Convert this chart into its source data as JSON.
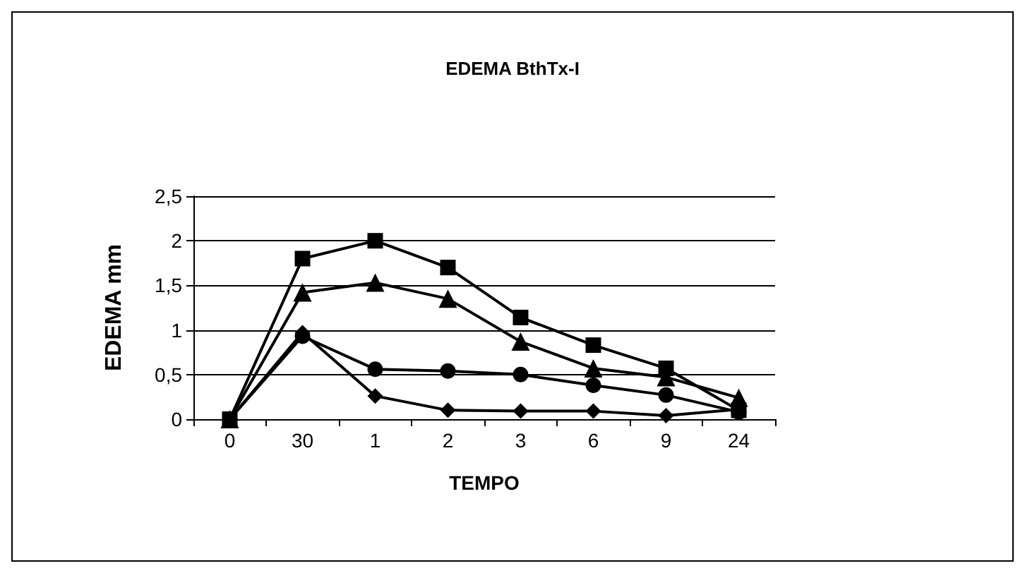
{
  "chart_data": {
    "type": "line",
    "title": "EDEMA BthTx-I",
    "xlabel": "TEMPO",
    "ylabel": "EDEMA mm",
    "categories": [
      "0",
      "30",
      "1",
      "2",
      "3",
      "6",
      "9",
      "24"
    ],
    "series": [
      {
        "color": "#000000",
        "marker": "square",
        "values": [
          0,
          1.8,
          2.0,
          1.7,
          1.14,
          0.83,
          0.57,
          0.1
        ]
      },
      {
        "color": "#000000",
        "marker": "triangle",
        "values": [
          0,
          1.42,
          1.53,
          1.35,
          0.87,
          0.57,
          0.47,
          0.24
        ]
      },
      {
        "color": "#000000",
        "marker": "diamond",
        "values": [
          0,
          0.97,
          0.26,
          0.1,
          0.09,
          0.09,
          0.04,
          0.11
        ]
      },
      {
        "color": "#000000",
        "marker": "circle",
        "values": [
          0,
          0.93,
          0.56,
          0.54,
          0.5,
          0.38,
          0.27,
          0.08
        ]
      }
    ],
    "ylim": [
      0,
      2.5
    ],
    "yticks": [
      {
        "value": 0,
        "label": "0"
      },
      {
        "value": 0.5,
        "label": "0,5"
      },
      {
        "value": 1,
        "label": "1"
      },
      {
        "value": 1.5,
        "label": "1,5"
      },
      {
        "value": 2,
        "label": "2"
      },
      {
        "value": 2.5,
        "label": "2,5"
      }
    ],
    "grid": "y",
    "line_style": "solid"
  }
}
